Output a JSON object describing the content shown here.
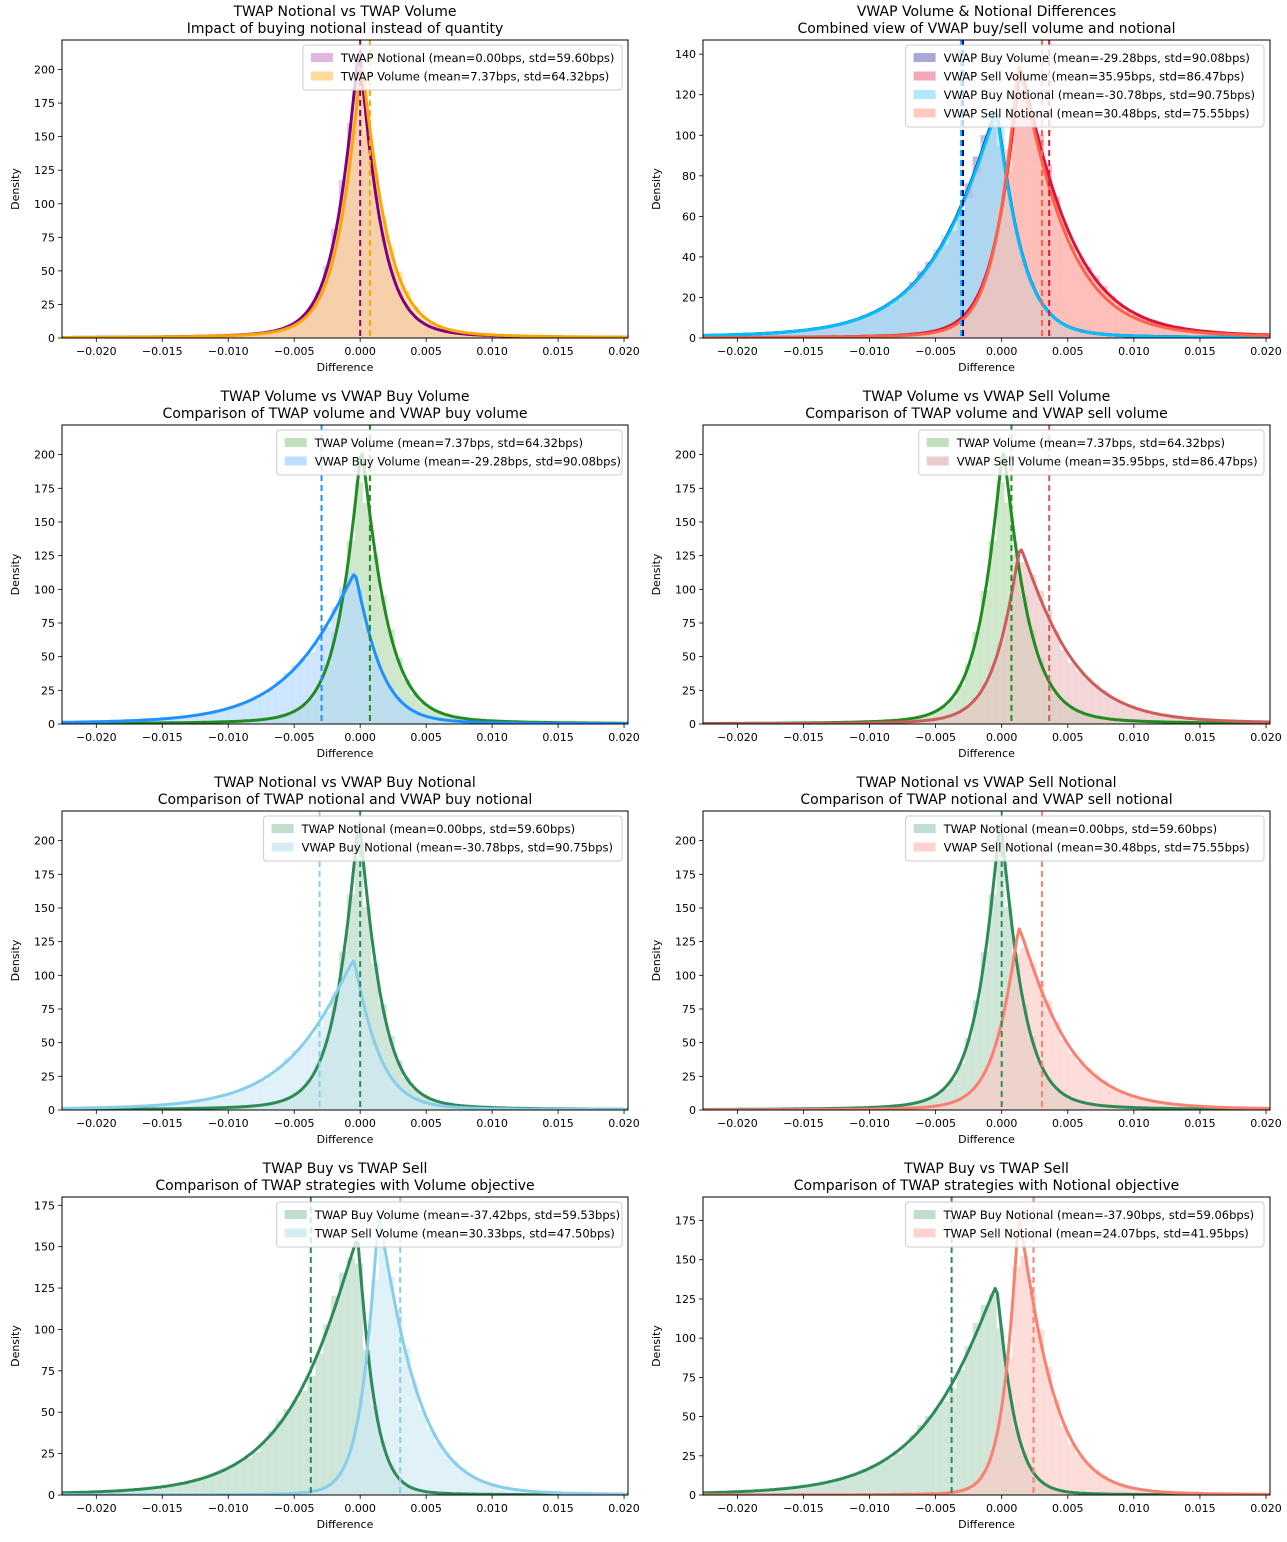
{
  "figure": {
    "layout": "4 rows x 2 columns",
    "background": "#ffffff"
  },
  "chart_data": [
    {
      "id": "p1",
      "type": "area",
      "title": "TWAP Notional vs TWAP Volume",
      "subtitle": "Impact of buying notional instead of quantity",
      "xlabel": "Difference",
      "ylabel": "Density",
      "xlim": [
        -0.0226,
        0.0203
      ],
      "ylim": [
        0,
        222
      ],
      "xticks": [
        -0.02,
        -0.015,
        -0.01,
        -0.005,
        0.0,
        0.005,
        0.01,
        0.015,
        0.02
      ],
      "xtick_labels": [
        "−0.020",
        "−0.015",
        "−0.010",
        "−0.005",
        "0.000",
        "0.005",
        "0.010",
        "0.015",
        "0.020"
      ],
      "yticks": [
        0,
        25,
        50,
        75,
        100,
        125,
        150,
        175,
        200
      ],
      "legend_position": "top-right",
      "series": [
        {
          "name": "TWAP Notional (mean=0.00bps, std=59.60bps)",
          "line_color": "#800080",
          "fill_color": "#d8a9d8",
          "mean": 0.0,
          "mode": -0.0001,
          "peak": 215,
          "width_left": 0.0016,
          "width_right": 0.0016,
          "tail": 0.09
        },
        {
          "name": "TWAP Volume (mean=7.37bps, std=64.32bps)",
          "line_color": "#ffa500",
          "fill_color": "#ffd58a",
          "mean": 0.000737,
          "mode": 0.0001,
          "peak": 205,
          "width_left": 0.0016,
          "width_right": 0.0018,
          "tail": 0.09
        }
      ]
    },
    {
      "id": "p2",
      "type": "area",
      "title": "VWAP Volume & Notional Differences",
      "subtitle": "Combined view of VWAP buy/sell volume and notional",
      "xlabel": "Difference",
      "ylabel": "Density",
      "xlim": [
        -0.0226,
        0.0203
      ],
      "ylim": [
        0,
        147
      ],
      "xticks": [
        -0.02,
        -0.015,
        -0.01,
        -0.005,
        0.0,
        0.005,
        0.01,
        0.015,
        0.02
      ],
      "xtick_labels": [
        "−0.020",
        "−0.015",
        "−0.010",
        "−0.005",
        "0.000",
        "0.005",
        "0.010",
        "0.015",
        "0.020"
      ],
      "yticks": [
        0,
        20,
        40,
        60,
        80,
        100,
        120,
        140
      ],
      "legend_position": "top-right",
      "series": [
        {
          "name": "VWAP Buy Volume (mean=-29.28bps, std=90.08bps)",
          "line_color": "#00008b",
          "fill_color": "#9a9ad0",
          "mean": -0.002928,
          "mode": -0.0004,
          "peak": 112,
          "width_left": 0.0042,
          "width_right": 0.0018,
          "tail": 0.08
        },
        {
          "name": "VWAP Sell Volume (mean=35.95bps, std=86.47bps)",
          "line_color": "#dc143c",
          "fill_color": "#f09aaa",
          "mean": 0.003595,
          "mode": 0.0014,
          "peak": 133,
          "width_left": 0.0017,
          "width_right": 0.0036,
          "tail": 0.08
        },
        {
          "name": "VWAP Buy Notional (mean=-30.78bps, std=90.75bps)",
          "line_color": "#00bfff",
          "fill_color": "#a6e4fa",
          "mean": -0.003078,
          "mode": -0.0004,
          "peak": 111,
          "width_left": 0.0042,
          "width_right": 0.0018,
          "tail": 0.08
        },
        {
          "name": "VWAP Sell Notional (mean=30.48bps, std=75.55bps)",
          "line_color": "#ff6347",
          "fill_color": "#ffc0b0",
          "mean": 0.003048,
          "mode": 0.0013,
          "peak": 134,
          "width_left": 0.0016,
          "width_right": 0.0034,
          "tail": 0.07
        }
      ]
    },
    {
      "id": "p3",
      "type": "area",
      "title": "TWAP Volume vs VWAP Buy Volume",
      "subtitle": "Comparison of TWAP volume and VWAP buy volume",
      "xlabel": "Difference",
      "ylabel": "Density",
      "xlim": [
        -0.0226,
        0.0203
      ],
      "ylim": [
        0,
        222
      ],
      "xticks": [
        -0.02,
        -0.015,
        -0.01,
        -0.005,
        0.0,
        0.005,
        0.01,
        0.015,
        0.02
      ],
      "xtick_labels": [
        "−0.020",
        "−0.015",
        "−0.010",
        "−0.005",
        "0.000",
        "0.005",
        "0.010",
        "0.015",
        "0.020"
      ],
      "yticks": [
        0,
        25,
        50,
        75,
        100,
        125,
        150,
        175,
        200
      ],
      "legend_position": "top-right",
      "series": [
        {
          "name": "TWAP Volume (mean=7.37bps, std=64.32bps)",
          "line_color": "#228b22",
          "fill_color": "#b6dbb0",
          "mean": 0.000737,
          "mode": 0.0001,
          "peak": 205,
          "width_left": 0.0016,
          "width_right": 0.0018,
          "tail": 0.09
        },
        {
          "name": "VWAP Buy Volume (mean=-29.28bps, std=90.08bps)",
          "line_color": "#1e90ff",
          "fill_color": "#b3d8ff",
          "mean": -0.002928,
          "mode": -0.0004,
          "peak": 112,
          "width_left": 0.0042,
          "width_right": 0.0018,
          "tail": 0.08
        }
      ]
    },
    {
      "id": "p4",
      "type": "area",
      "title": "TWAP Volume vs VWAP Sell Volume",
      "subtitle": "Comparison of TWAP volume and VWAP sell volume",
      "xlabel": "Difference",
      "ylabel": "Density",
      "xlim": [
        -0.0226,
        0.0203
      ],
      "ylim": [
        0,
        222
      ],
      "xticks": [
        -0.02,
        -0.015,
        -0.01,
        -0.005,
        0.0,
        0.005,
        0.01,
        0.015,
        0.02
      ],
      "xtick_labels": [
        "−0.020",
        "−0.015",
        "−0.010",
        "−0.005",
        "0.000",
        "0.005",
        "0.010",
        "0.015",
        "0.020"
      ],
      "yticks": [
        0,
        25,
        50,
        75,
        100,
        125,
        150,
        175,
        200
      ],
      "legend_position": "top-right",
      "series": [
        {
          "name": "TWAP Volume (mean=7.37bps, std=64.32bps)",
          "line_color": "#228b22",
          "fill_color": "#b6dbb0",
          "mean": 0.000737,
          "mode": 0.0001,
          "peak": 205,
          "width_left": 0.0016,
          "width_right": 0.0018,
          "tail": 0.09
        },
        {
          "name": "VWAP Sell Volume (mean=35.95bps, std=86.47bps)",
          "line_color": "#cd5c5c",
          "fill_color": "#e9c2c2",
          "mean": 0.003595,
          "mode": 0.0014,
          "peak": 131,
          "width_left": 0.0017,
          "width_right": 0.0036,
          "tail": 0.08
        }
      ]
    },
    {
      "id": "p5",
      "type": "area",
      "title": "TWAP Notional vs VWAP Buy Notional",
      "subtitle": "Comparison of TWAP notional and VWAP buy notional",
      "xlabel": "Difference",
      "ylabel": "Density",
      "xlim": [
        -0.0226,
        0.0203
      ],
      "ylim": [
        0,
        222
      ],
      "xticks": [
        -0.02,
        -0.015,
        -0.01,
        -0.005,
        0.0,
        0.005,
        0.01,
        0.015,
        0.02
      ],
      "xtick_labels": [
        "−0.020",
        "−0.015",
        "−0.010",
        "−0.005",
        "0.000",
        "0.005",
        "0.010",
        "0.015",
        "0.020"
      ],
      "yticks": [
        0,
        25,
        50,
        75,
        100,
        125,
        150,
        175,
        200
      ],
      "legend_position": "top-right",
      "series": [
        {
          "name": "TWAP Notional (mean=0.00bps, std=59.60bps)",
          "line_color": "#2e8b57",
          "fill_color": "#b5d8c4",
          "mean": 0.0,
          "mode": -0.0001,
          "peak": 215,
          "width_left": 0.0016,
          "width_right": 0.0016,
          "tail": 0.09
        },
        {
          "name": "VWAP Buy Notional (mean=-30.78bps, std=90.75bps)",
          "line_color": "#87ceeb",
          "fill_color": "#cfeaf5",
          "mean": -0.003078,
          "mode": -0.0005,
          "peak": 111,
          "width_left": 0.0042,
          "width_right": 0.0018,
          "tail": 0.08
        }
      ]
    },
    {
      "id": "p6",
      "type": "area",
      "title": "TWAP Notional vs VWAP Sell Notional",
      "subtitle": "Comparison of TWAP notional and VWAP sell notional",
      "xlabel": "Difference",
      "ylabel": "Density",
      "xlim": [
        -0.0226,
        0.0203
      ],
      "ylim": [
        0,
        222
      ],
      "xticks": [
        -0.02,
        -0.015,
        -0.01,
        -0.005,
        0.0,
        0.005,
        0.01,
        0.015,
        0.02
      ],
      "xtick_labels": [
        "−0.020",
        "−0.015",
        "−0.010",
        "−0.005",
        "0.000",
        "0.005",
        "0.010",
        "0.015",
        "0.020"
      ],
      "yticks": [
        0,
        25,
        50,
        75,
        100,
        125,
        150,
        175,
        200
      ],
      "legend_position": "top-right",
      "series": [
        {
          "name": "TWAP Notional (mean=0.00bps, std=59.60bps)",
          "line_color": "#2e8b57",
          "fill_color": "#b5d8c4",
          "mean": 0.0,
          "mode": -0.0001,
          "peak": 215,
          "width_left": 0.0016,
          "width_right": 0.0016,
          "tail": 0.09
        },
        {
          "name": "VWAP Sell Notional (mean=30.48bps, std=75.55bps)",
          "line_color": "#fa8072",
          "fill_color": "#fccbc5",
          "mean": 0.003048,
          "mode": 0.0013,
          "peak": 135,
          "width_left": 0.0016,
          "width_right": 0.0034,
          "tail": 0.07
        }
      ]
    },
    {
      "id": "p7",
      "type": "area",
      "title": "TWAP Buy vs TWAP Sell",
      "subtitle": "Comparison of TWAP strategies with Volume objective",
      "xlabel": "Difference",
      "ylabel": "Density",
      "xlim": [
        -0.0226,
        0.0203
      ],
      "ylim": [
        0,
        180
      ],
      "xticks": [
        -0.02,
        -0.015,
        -0.01,
        -0.005,
        0.0,
        0.005,
        0.01,
        0.015,
        0.02
      ],
      "xtick_labels": [
        "−0.020",
        "−0.015",
        "−0.010",
        "−0.005",
        "0.000",
        "0.005",
        "0.010",
        "0.015",
        "0.020"
      ],
      "yticks": [
        0,
        25,
        50,
        75,
        100,
        125,
        150,
        175
      ],
      "legend_position": "top-right",
      "series": [
        {
          "name": "TWAP Buy Volume (mean=-37.42bps, std=59.53bps)",
          "line_color": "#2e8b57",
          "fill_color": "#b5d8c4",
          "mean": -0.003742,
          "mode": -0.0002,
          "peak": 155,
          "width_left": 0.0045,
          "width_right": 0.0012,
          "tail": 0.05
        },
        {
          "name": "TWAP Sell Volume (mean=30.33bps, std=47.50bps)",
          "line_color": "#87ceeb",
          "fill_color": "#cfeaf5",
          "mean": 0.003033,
          "mode": 0.0014,
          "peak": 168,
          "width_left": 0.0012,
          "width_right": 0.0028,
          "tail": 0.04
        }
      ]
    },
    {
      "id": "p8",
      "type": "area",
      "title": "TWAP Buy vs TWAP Sell",
      "subtitle": "Comparison of TWAP strategies with Notional objective",
      "xlabel": "Difference",
      "ylabel": "Density",
      "xlim": [
        -0.0226,
        0.0203
      ],
      "ylim": [
        0,
        190
      ],
      "xticks": [
        -0.02,
        -0.015,
        -0.01,
        -0.005,
        0.0,
        0.005,
        0.01,
        0.015,
        0.02
      ],
      "xtick_labels": [
        "−0.020",
        "−0.015",
        "−0.010",
        "−0.005",
        "0.000",
        "0.005",
        "0.010",
        "0.015",
        "0.020"
      ],
      "yticks": [
        0,
        25,
        50,
        75,
        100,
        125,
        150,
        175
      ],
      "legend_position": "top-right",
      "series": [
        {
          "name": "TWAP Buy Notional (mean=-37.90bps, std=59.06bps)",
          "line_color": "#2e8b57",
          "fill_color": "#b5d8c4",
          "mean": -0.00379,
          "mode": -0.0004,
          "peak": 133,
          "width_left": 0.0048,
          "width_right": 0.0013,
          "tail": 0.05
        },
        {
          "name": "TWAP Sell Notional (mean=24.07bps, std=41.95bps)",
          "line_color": "#fa8072",
          "fill_color": "#fccbc5",
          "mean": 0.002407,
          "mode": 0.0013,
          "peak": 177,
          "width_left": 0.0011,
          "width_right": 0.0025,
          "tail": 0.04
        }
      ]
    }
  ]
}
